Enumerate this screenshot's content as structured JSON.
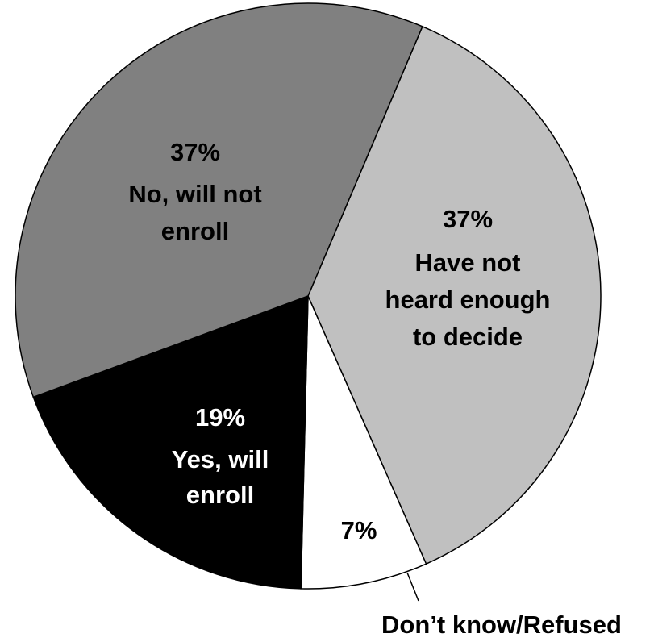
{
  "chart_data": {
    "type": "pie",
    "title": "",
    "slices": [
      {
        "label_lines": [
          "Have not",
          "heard enough",
          "to decide"
        ],
        "pct_label": "37%",
        "value": 37,
        "color": "#c0c0c0"
      },
      {
        "label_lines": [],
        "pct_label": "7%",
        "value": 7,
        "color": "#ffffff"
      },
      {
        "label_lines": [
          "Yes, will",
          "enroll"
        ],
        "pct_label": "19%",
        "value": 19,
        "color": "#000000"
      },
      {
        "label_lines": [
          "No, will not",
          "enroll"
        ],
        "pct_label": "37%",
        "value": 37,
        "color": "#808080"
      }
    ],
    "external_label": "Don’t know/Refused",
    "start_angle_deg": 23,
    "direction": "clockwise",
    "text_colors": {
      "on_light": "#000000",
      "on_dark": "#ffffff"
    }
  }
}
